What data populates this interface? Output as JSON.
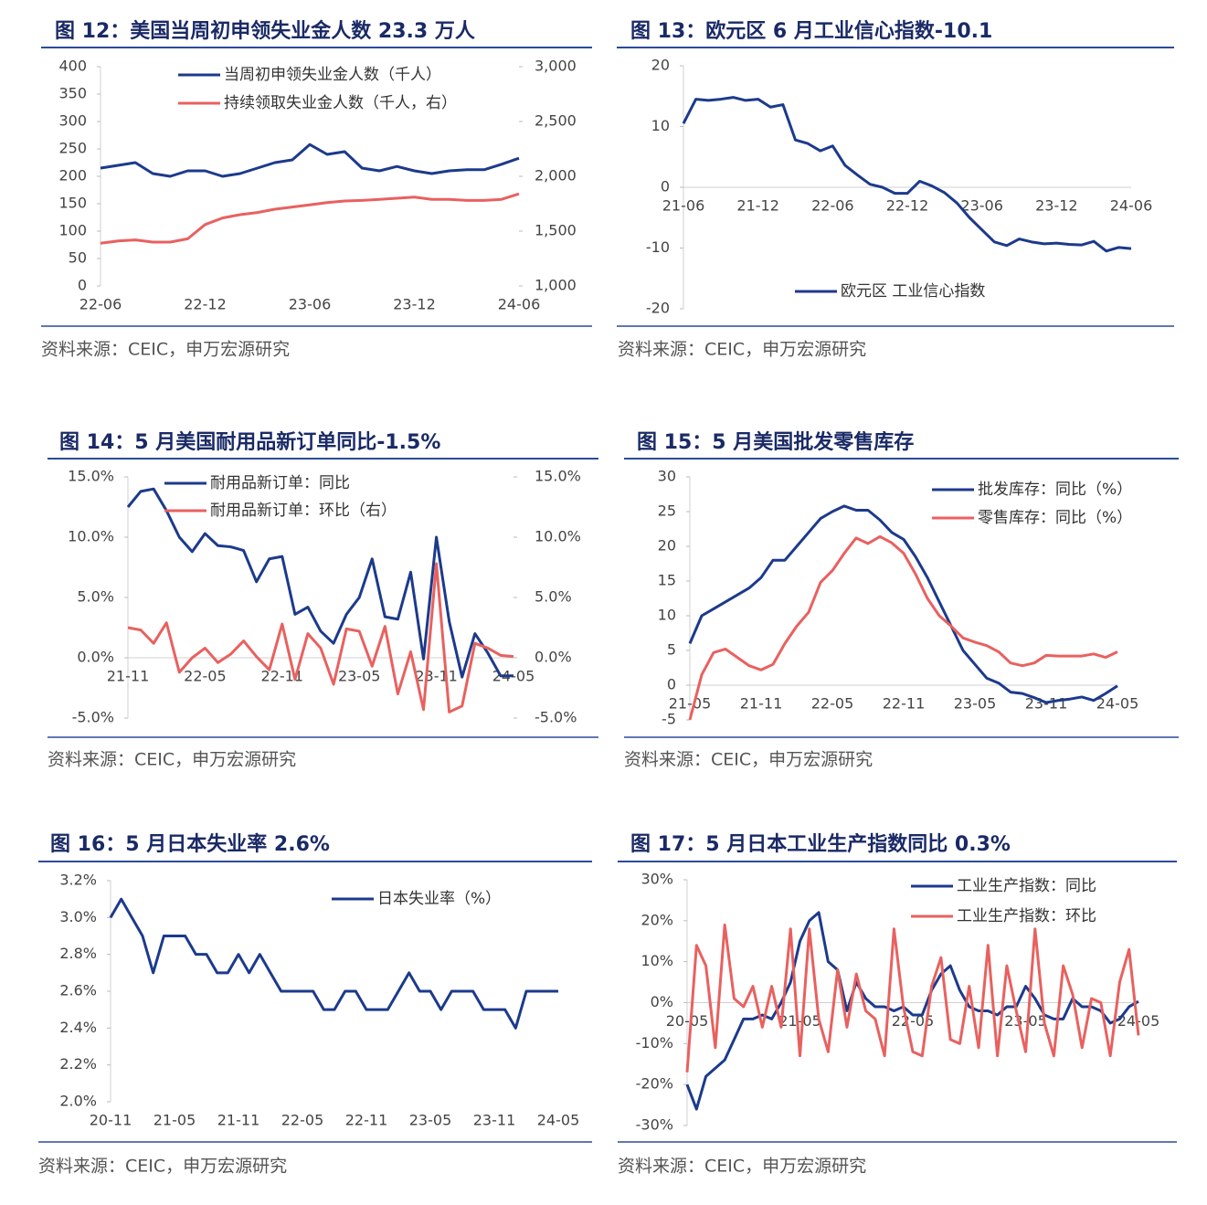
{
  "chart_data": [
    {
      "type": "line",
      "title": "图 12：美国当周初申领失业金人数 23.3 万人",
      "source": "资料来源：CEIC，申万宏源研究",
      "legend": "top",
      "categories": [
        "22-06",
        null,
        null,
        null,
        null,
        null,
        "22-12",
        null,
        null,
        null,
        null,
        null,
        "23-06",
        null,
        null,
        null,
        null,
        null,
        "23-12",
        null,
        null,
        null,
        null,
        null,
        "24-06"
      ],
      "series": [
        {
          "name": "当周初申领失业金人数（千人）",
          "color": "#1c3a8c",
          "values": [
            215,
            220,
            225,
            205,
            200,
            210,
            210,
            200,
            205,
            215,
            225,
            230,
            258,
            240,
            245,
            215,
            210,
            218,
            210,
            205,
            210,
            212,
            212,
            222,
            233
          ]
        },
        {
          "name": "持续领取失业金人数（千人，右）",
          "color": "#e8615f",
          "axis": "y2",
          "values": [
            1390,
            1410,
            1420,
            1400,
            1400,
            1430,
            1560,
            1620,
            1650,
            1670,
            1700,
            1720,
            1740,
            1760,
            1775,
            1780,
            1790,
            1800,
            1810,
            1790,
            1790,
            1780,
            1780,
            1790,
            1840
          ]
        }
      ],
      "ylim": [
        0,
        400
      ],
      "yticks": [
        0,
        50,
        100,
        150,
        200,
        250,
        300,
        350,
        400
      ],
      "y2lim": [
        1000,
        3000
      ],
      "y2ticks": [
        {
          "value": 1000,
          "label": "1,000"
        },
        {
          "value": 1500,
          "label": "1,500"
        },
        {
          "value": 2000,
          "label": "2,000"
        },
        {
          "value": 2500,
          "label": "2,500"
        },
        {
          "value": 3000,
          "label": "3,000"
        }
      ]
    },
    {
      "type": "line",
      "title": "图 13：欧元区 6 月工业信心指数-10.1",
      "source": "资料来源：CEIC，申万宏源研究",
      "legend": "bottom",
      "categories": [
        "21-06",
        null,
        null,
        null,
        null,
        null,
        "21-12",
        null,
        null,
        null,
        null,
        null,
        "22-06",
        null,
        null,
        null,
        null,
        null,
        "22-12",
        null,
        null,
        null,
        null,
        null,
        "23-06",
        null,
        null,
        null,
        null,
        null,
        "23-12",
        null,
        null,
        null,
        null,
        null,
        "24-06"
      ],
      "series": [
        {
          "name": "欧元区 工业信心指数",
          "color": "#1c3a8c",
          "values": [
            10.5,
            14.5,
            14.3,
            14.5,
            14.8,
            14.3,
            14.5,
            13.2,
            13.6,
            7.8,
            7.2,
            6.0,
            6.8,
            3.6,
            2.0,
            0.5,
            0.0,
            -1.0,
            -1.0,
            1.0,
            0.2,
            -0.9,
            -2.6,
            -5.0,
            -7.0,
            -9.0,
            -9.6,
            -8.5,
            -9.0,
            -9.3,
            -9.2,
            -9.4,
            -9.5,
            -8.9,
            -10.5,
            -9.9,
            -10.1
          ]
        }
      ],
      "ylim": [
        -20,
        20
      ],
      "yticks": [
        -20,
        -10,
        0,
        10,
        20
      ]
    },
    {
      "type": "line",
      "title": "图 14：5 月美国耐用品新订单同比-1.5%",
      "source": "资料来源：CEIC，申万宏源研究",
      "legend": "top",
      "categories": [
        "21-11",
        null,
        null,
        null,
        null,
        null,
        "22-05",
        null,
        null,
        null,
        null,
        null,
        "22-11",
        null,
        null,
        null,
        null,
        null,
        "23-05",
        null,
        null,
        null,
        null,
        null,
        "23-11",
        null,
        null,
        null,
        null,
        null,
        "24-05"
      ],
      "series": [
        {
          "name": "耐用品新订单：同比",
          "color": "#1c3a8c",
          "values": [
            12.5,
            13.8,
            14.0,
            12.2,
            10.0,
            8.8,
            10.3,
            9.3,
            9.2,
            8.9,
            6.3,
            8.2,
            8.4,
            3.6,
            4.2,
            2.2,
            1.2,
            3.6,
            5.0,
            8.2,
            3.4,
            3.2,
            7.1,
            -0.1,
            10.0,
            3.0,
            -1.6,
            2.0,
            0.4,
            -1.5,
            -1.5
          ]
        },
        {
          "name": "耐用品新订单：环比（右）",
          "color": "#e8615f",
          "axis": "y2",
          "values": [
            2.5,
            2.3,
            1.2,
            2.9,
            -1.2,
            0.0,
            0.8,
            -0.4,
            0.3,
            1.4,
            0.1,
            -1.0,
            2.8,
            -1.8,
            2.0,
            0.8,
            -2.2,
            2.4,
            2.2,
            -0.7,
            2.6,
            -3.0,
            0.5,
            -4.3,
            7.8,
            -4.5,
            -4.0,
            1.2,
            0.8,
            0.2,
            0.1
          ]
        }
      ],
      "ylim": [
        -5,
        15
      ],
      "yticks": [
        {
          "value": -5,
          "label": "-5.0%"
        },
        {
          "value": 0,
          "label": "0.0%"
        },
        {
          "value": 5,
          "label": "5.0%"
        },
        {
          "value": 10,
          "label": "10.0%"
        },
        {
          "value": 15,
          "label": "15.0%"
        }
      ],
      "y2lim": [
        -5,
        15
      ],
      "y2ticks": [
        {
          "value": -5,
          "label": "-5.0%"
        },
        {
          "value": 0,
          "label": "0.0%"
        },
        {
          "value": 5,
          "label": "5.0%"
        },
        {
          "value": 10,
          "label": "10.0%"
        },
        {
          "value": 15,
          "label": "15.0%"
        }
      ]
    },
    {
      "type": "line",
      "title": "图 15：5 月美国批发零售库存",
      "source": "资料来源：CEIC，申万宏源研究",
      "legend": "top",
      "categories": [
        "21-05",
        null,
        null,
        null,
        null,
        null,
        "21-11",
        null,
        null,
        null,
        null,
        null,
        "22-05",
        null,
        null,
        null,
        null,
        null,
        "22-11",
        null,
        null,
        null,
        null,
        null,
        "23-05",
        null,
        null,
        null,
        null,
        null,
        "23-11",
        null,
        null,
        null,
        null,
        null,
        "24-05"
      ],
      "series": [
        {
          "name": "批发库存：同比（%）",
          "color": "#1c3a8c",
          "values": [
            6,
            10,
            11,
            12,
            13,
            14,
            15.5,
            18,
            18,
            20,
            22,
            24,
            25,
            25.8,
            25.2,
            25.2,
            23.8,
            22,
            21,
            18.5,
            15.5,
            12,
            8.5,
            5,
            3,
            1,
            0.3,
            -1,
            -1.2,
            -1.8,
            -2.5,
            -2.2,
            -2.0,
            -1.7,
            -2.2,
            -1.2,
            -0.1
          ]
        },
        {
          "name": "零售库存：同比（%）",
          "color": "#e8615f",
          "values": [
            -5,
            1.5,
            4.7,
            5.2,
            4,
            2.8,
            2.2,
            3,
            6,
            8.5,
            10.5,
            14.8,
            16.5,
            19,
            21.2,
            20.4,
            21.4,
            20.5,
            19,
            16,
            12.5,
            10,
            8.5,
            6.8,
            6.2,
            5.7,
            4.8,
            3.2,
            2.8,
            3.2,
            4.3,
            4.2,
            4.2,
            4.2,
            4.5,
            4,
            4.8
          ]
        }
      ],
      "ylim": [
        -5,
        30
      ],
      "yticks": [
        -5,
        0,
        5,
        10,
        15,
        20,
        25,
        30
      ]
    },
    {
      "type": "line",
      "title": "图 16：5 月日本失业率 2.6%",
      "source": "资料来源：CEIC，申万宏源研究",
      "legend": "top",
      "categories": [
        "20-11",
        null,
        null,
        null,
        null,
        null,
        "21-05",
        null,
        null,
        null,
        null,
        null,
        "21-11",
        null,
        null,
        null,
        null,
        null,
        "22-05",
        null,
        null,
        null,
        null,
        null,
        "22-11",
        null,
        null,
        null,
        null,
        null,
        "23-05",
        null,
        null,
        null,
        null,
        null,
        "23-11",
        null,
        null,
        null,
        null,
        null,
        "24-05"
      ],
      "series": [
        {
          "name": "日本失业率（%）",
          "color": "#1c3a8c",
          "values": [
            3.0,
            3.1,
            3.0,
            2.9,
            2.7,
            2.9,
            2.9,
            2.9,
            2.8,
            2.8,
            2.7,
            2.7,
            2.8,
            2.7,
            2.8,
            2.7,
            2.6,
            2.6,
            2.6,
            2.6,
            2.5,
            2.5,
            2.6,
            2.6,
            2.5,
            2.5,
            2.5,
            2.6,
            2.7,
            2.6,
            2.6,
            2.5,
            2.6,
            2.6,
            2.6,
            2.5,
            2.5,
            2.5,
            2.4,
            2.6,
            2.6,
            2.6,
            2.6
          ]
        }
      ],
      "ylim": [
        2.0,
        3.2
      ],
      "yticks": [
        {
          "value": 2.0,
          "label": "2.0%"
        },
        {
          "value": 2.2,
          "label": "2.2%"
        },
        {
          "value": 2.4,
          "label": "2.4%"
        },
        {
          "value": 2.6,
          "label": "2.6%"
        },
        {
          "value": 2.8,
          "label": "2.8%"
        },
        {
          "value": 3.0,
          "label": "3.0%"
        },
        {
          "value": 3.2,
          "label": "3.2%"
        }
      ]
    },
    {
      "type": "line",
      "title": "图 17：5 月日本工业生产指数同比 0.3%",
      "source": "资料来源：CEIC，申万宏源研究",
      "legend": "top",
      "categories": [
        "20-05",
        null,
        null,
        null,
        null,
        null,
        null,
        null,
        null,
        null,
        null,
        null,
        "21-05",
        null,
        null,
        null,
        null,
        null,
        null,
        null,
        null,
        null,
        null,
        null,
        "22-05",
        null,
        null,
        null,
        null,
        null,
        null,
        null,
        null,
        null,
        null,
        null,
        "23-05",
        null,
        null,
        null,
        null,
        null,
        null,
        null,
        null,
        null,
        null,
        null,
        "24-05"
      ],
      "series": [
        {
          "name": "工业生产指数：同比",
          "color": "#1c3a8c",
          "values": [
            -20,
            -26,
            -18,
            -16,
            -14,
            -9,
            -4,
            -4,
            -3,
            -4,
            0,
            5,
            15,
            20,
            22,
            10,
            8,
            -2,
            5,
            1,
            -1,
            -1,
            -2,
            -1,
            -3,
            -3,
            3,
            7,
            9,
            3,
            -1,
            -2,
            -2,
            -3,
            -1,
            -1,
            4,
            1,
            -3,
            -4,
            -4,
            1,
            -1,
            -1,
            -2,
            -5,
            -4,
            -1,
            0.3
          ]
        },
        {
          "name": "工业生产指数：环比",
          "color": "#e8615f",
          "values": [
            -17,
            14,
            9,
            -11,
            19,
            1,
            -1,
            4,
            -6,
            4,
            -6,
            18,
            -13,
            18,
            -4,
            -12,
            8,
            -6,
            7,
            -2,
            -4,
            -13,
            18,
            -1,
            -12,
            -13,
            4,
            11,
            -9,
            -10,
            4,
            -11,
            14,
            -13,
            9,
            -2,
            -12,
            18,
            -5,
            -13,
            9,
            2,
            -11,
            1,
            0,
            -13,
            5,
            13,
            -8
          ]
        }
      ],
      "ylim": [
        -30,
        30
      ],
      "yticks": [
        {
          "value": -30,
          "label": "-30%"
        },
        {
          "value": -20,
          "label": "-20%"
        },
        {
          "value": -10,
          "label": "-10%"
        },
        {
          "value": 0,
          "label": "0%"
        },
        {
          "value": 10,
          "label": "10%"
        },
        {
          "value": 20,
          "label": "20%"
        },
        {
          "value": 30,
          "label": "30%"
        }
      ]
    }
  ]
}
